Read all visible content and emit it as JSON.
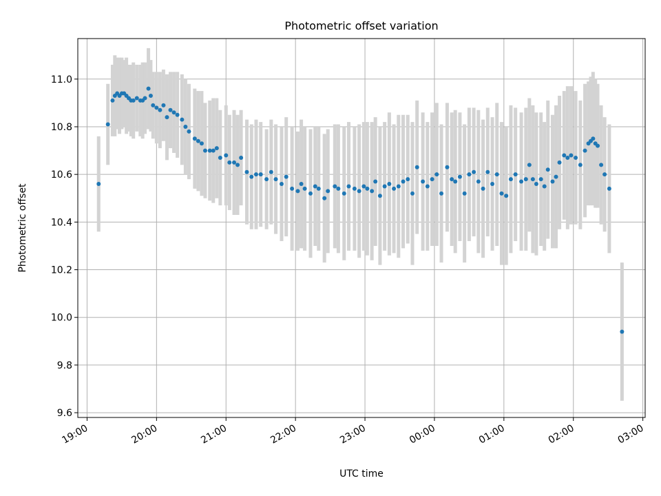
{
  "chart_data": {
    "type": "scatter",
    "title": "Photometric offset variation",
    "xlabel": "UTC time",
    "ylabel": "Photometric offset",
    "x_ticks": [
      "19:00",
      "20:00",
      "21:00",
      "22:00",
      "23:00",
      "00:00",
      "01:00",
      "02:00",
      "03:00"
    ],
    "y_ticks": [
      "9.6",
      "9.8",
      "10.0",
      "10.2",
      "10.4",
      "10.6",
      "10.8",
      "11.0"
    ],
    "xlim": [
      "18:52",
      "03:02"
    ],
    "ylim": [
      9.58,
      11.17
    ],
    "grid": true,
    "colors": {
      "points": "#1f77b4",
      "errorbars": "#d3d3d3",
      "grid": "#b0b0b0"
    },
    "series": [
      {
        "x": [
          "19:10",
          "19:18",
          "19:22",
          "19:24",
          "19:26",
          "19:28",
          "19:30",
          "19:32",
          "19:34",
          "19:36",
          "19:38",
          "19:40",
          "19:43",
          "19:46",
          "19:48",
          "19:50",
          "19:53",
          "19:55",
          "19:57",
          "20:00",
          "20:03",
          "20:06",
          "20:09",
          "20:12",
          "20:15",
          "20:18",
          "20:22",
          "20:25",
          "20:28",
          "20:33",
          "20:36",
          "20:39",
          "20:42",
          "20:46",
          "20:49",
          "20:52",
          "20:55",
          "21:00",
          "21:03",
          "21:07",
          "21:10",
          "21:13",
          "21:18",
          "21:22",
          "21:26",
          "21:30",
          "21:35",
          "21:39",
          "21:43",
          "21:48",
          "21:52",
          "21:57",
          "22:02",
          "22:05",
          "22:08",
          "22:13",
          "22:17",
          "22:20",
          "22:25",
          "22:28",
          "22:34",
          "22:37",
          "22:42",
          "22:46",
          "22:51",
          "22:55",
          "22:59",
          "23:02",
          "23:06",
          "23:09",
          "23:13",
          "23:17",
          "23:21",
          "23:25",
          "23:29",
          "23:33",
          "23:37",
          "23:41",
          "23:45",
          "23:50",
          "23:54",
          "23:58",
          "00:02",
          "00:06",
          "00:11",
          "00:15",
          "00:18",
          "00:22",
          "00:26",
          "00:30",
          "00:34",
          "00:38",
          "00:42",
          "00:46",
          "00:50",
          "00:54",
          "00:58",
          "01:02",
          "01:06",
          "01:10",
          "01:15",
          "01:19",
          "01:22",
          "01:25",
          "01:28",
          "01:32",
          "01:35",
          "01:38",
          "01:42",
          "01:45",
          "01:48",
          "01:52",
          "01:55",
          "01:58",
          "02:02",
          "02:06",
          "02:10",
          "02:13",
          "02:15",
          "02:17",
          "02:19",
          "02:21",
          "02:24",
          "02:27",
          "02:31",
          "02:42"
        ],
        "y": [
          10.56,
          10.81,
          10.91,
          10.93,
          10.94,
          10.93,
          10.94,
          10.94,
          10.93,
          10.92,
          10.91,
          10.91,
          10.92,
          10.91,
          10.91,
          10.92,
          10.96,
          10.93,
          10.89,
          10.88,
          10.87,
          10.89,
          10.84,
          10.87,
          10.86,
          10.85,
          10.83,
          10.8,
          10.78,
          10.75,
          10.74,
          10.73,
          10.7,
          10.7,
          10.7,
          10.71,
          10.67,
          10.68,
          10.65,
          10.65,
          10.64,
          10.67,
          10.61,
          10.59,
          10.6,
          10.6,
          10.58,
          10.61,
          10.58,
          10.56,
          10.59,
          10.54,
          10.53,
          10.56,
          10.54,
          10.52,
          10.55,
          10.54,
          10.5,
          10.53,
          10.55,
          10.54,
          10.52,
          10.55,
          10.54,
          10.53,
          10.55,
          10.54,
          10.53,
          10.57,
          10.51,
          10.55,
          10.56,
          10.54,
          10.55,
          10.57,
          10.58,
          10.52,
          10.63,
          10.57,
          10.55,
          10.58,
          10.6,
          10.52,
          10.63,
          10.58,
          10.57,
          10.59,
          10.52,
          10.6,
          10.61,
          10.57,
          10.54,
          10.61,
          10.56,
          10.6,
          10.52,
          10.51,
          10.58,
          10.6,
          10.57,
          10.58,
          10.64,
          10.58,
          10.56,
          10.58,
          10.55,
          10.62,
          10.57,
          10.59,
          10.65,
          10.68,
          10.67,
          10.68,
          10.67,
          10.64,
          10.7,
          10.73,
          10.74,
          10.75,
          10.73,
          10.72,
          10.64,
          10.6,
          10.54,
          9.94
        ],
        "err": [
          0.2,
          0.17,
          0.15,
          0.17,
          0.15,
          0.16,
          0.15,
          0.14,
          0.16,
          0.14,
          0.15,
          0.16,
          0.14,
          0.15,
          0.16,
          0.15,
          0.17,
          0.15,
          0.14,
          0.15,
          0.16,
          0.15,
          0.18,
          0.16,
          0.17,
          0.18,
          0.19,
          0.2,
          0.2,
          0.21,
          0.21,
          0.22,
          0.2,
          0.21,
          0.22,
          0.21,
          0.2,
          0.21,
          0.2,
          0.22,
          0.21,
          0.2,
          0.22,
          0.22,
          0.23,
          0.22,
          0.21,
          0.22,
          0.23,
          0.24,
          0.25,
          0.26,
          0.25,
          0.27,
          0.26,
          0.27,
          0.25,
          0.26,
          0.27,
          0.26,
          0.26,
          0.27,
          0.28,
          0.27,
          0.26,
          0.28,
          0.27,
          0.28,
          0.29,
          0.27,
          0.29,
          0.27,
          0.3,
          0.27,
          0.3,
          0.28,
          0.27,
          0.3,
          0.28,
          0.29,
          0.27,
          0.28,
          0.3,
          0.29,
          0.27,
          0.28,
          0.3,
          0.27,
          0.29,
          0.28,
          0.27,
          0.3,
          0.29,
          0.27,
          0.28,
          0.3,
          0.3,
          0.29,
          0.31,
          0.28,
          0.29,
          0.3,
          0.28,
          0.31,
          0.3,
          0.28,
          0.27,
          0.29,
          0.28,
          0.3,
          0.28,
          0.27,
          0.3,
          0.29,
          0.28,
          0.27,
          0.28,
          0.26,
          0.27,
          0.28,
          0.27,
          0.26,
          0.25,
          0.24,
          0.27,
          0.29
        ]
      }
    ]
  }
}
